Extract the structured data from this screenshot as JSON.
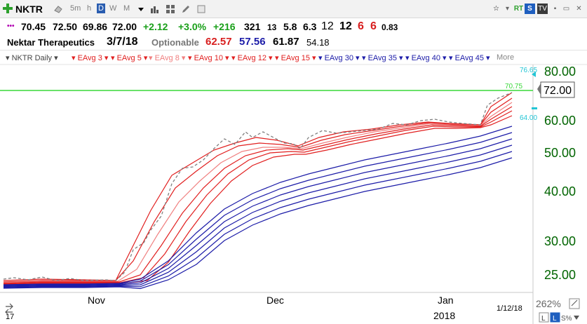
{
  "toolbar": {
    "symbol": "NKTR",
    "intervals": [
      "5m",
      "h",
      "D",
      "W",
      "M"
    ],
    "active_interval": "D"
  },
  "quote": {
    "last": "70.45",
    "high": "72.50",
    "low": "69.86",
    "close": "72.00",
    "change": "+2.12",
    "change_pct": "+3.0%",
    "v1": "+216",
    "v2": "321",
    "v3": "13",
    "v4": "5.8",
    "v5": "6.3",
    "v6": "12",
    "v7": "12",
    "v8": "6",
    "v9": "6",
    "v10": "0.83"
  },
  "info": {
    "company": "Nektar Therapeutics",
    "date": "3/7/18",
    "optionable": "Optionable",
    "p1": "62.57",
    "p2": "57.56",
    "p3": "61.87",
    "p4": "54.18"
  },
  "legend": {
    "main": "NKTR Daily",
    "items": [
      "EAvg 3",
      "EAvg 5",
      "EAvg 8",
      "EAvg 10",
      "EAvg 12",
      "EAvg 15",
      "EAvg 30",
      "EAvg 35",
      "EAvg 40",
      "EAvg 45"
    ],
    "more": "More"
  },
  "colors": {
    "ema_short": "#e11f1f",
    "ema_light": "#f08080",
    "ema_long": "#1c1ca8",
    "price": "#808080",
    "hline": "#39d839",
    "axis_text": "#006400"
  },
  "chart_data": {
    "type": "line",
    "y_scale": "log",
    "price_ticks": [
      "80.00",
      "60.00",
      "50.00",
      "40.00",
      "30.00",
      "25.00"
    ],
    "x_labels": [
      "Nov",
      "Dec",
      "Jan"
    ],
    "year_label": "2018",
    "date_label": "1/12/18",
    "year_left": "17",
    "current_price_box": "72.00",
    "hline_label": "70.75",
    "marker_high": "76.65",
    "marker_low": "64.00",
    "zoom": "262%",
    "hline_value": 70.75
  }
}
